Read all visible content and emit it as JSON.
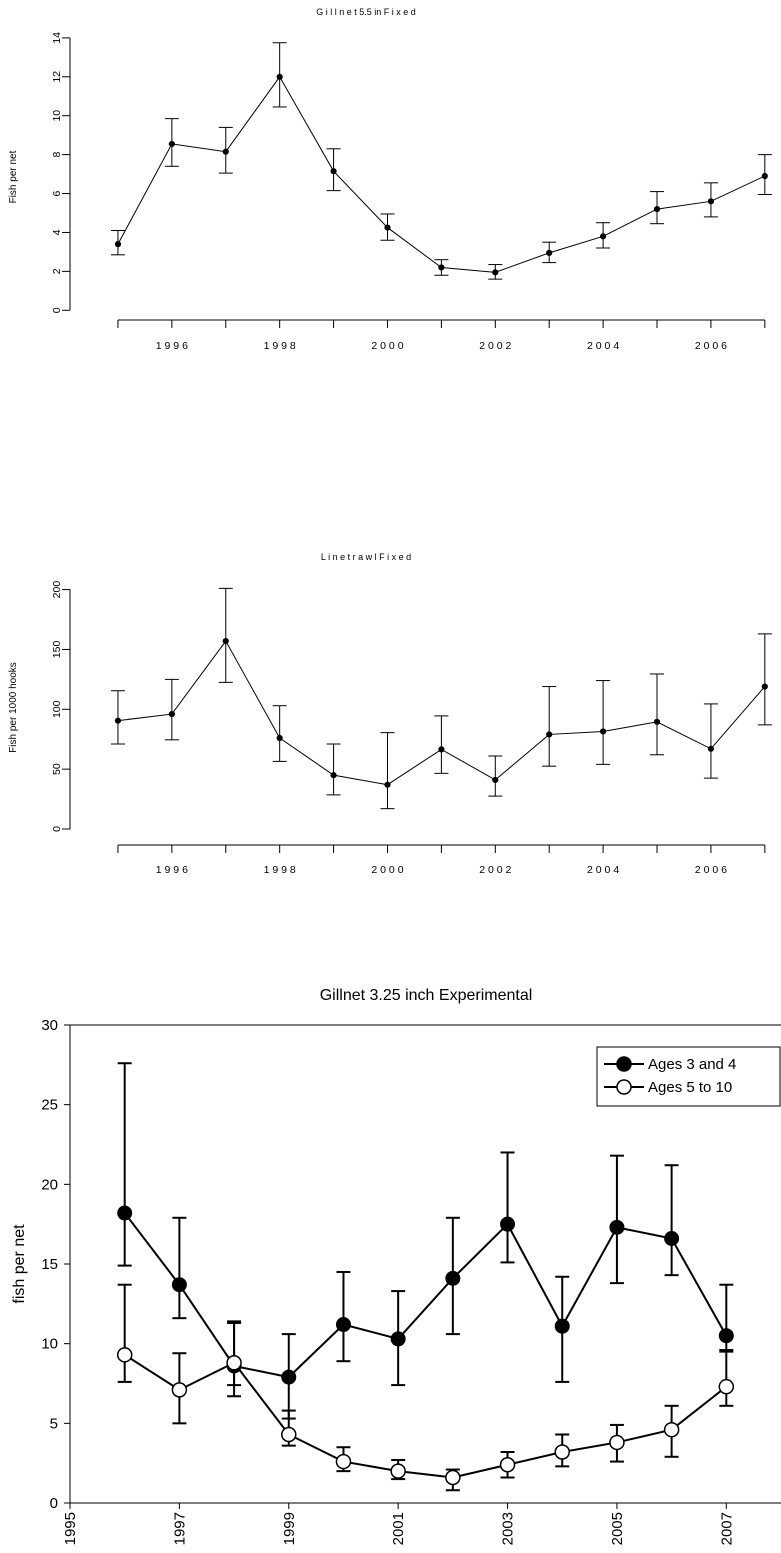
{
  "chart_data": [
    {
      "type": "line",
      "title": "G i l l n e t  5.5  in   F i x e d",
      "xlabel": "",
      "ylabel": "Fish per net",
      "xlim": [
        1994.5,
        2007.3
      ],
      "ylim": [
        -0.5,
        14.2
      ],
      "xticks": [
        1996,
        1998,
        2000,
        2002,
        2004,
        2006
      ],
      "xtick_labels": [
        "1 9 9 6",
        "1 9 9 8",
        "2 0 0 0",
        "2 0 0 2",
        "2 0 0 4",
        "2 0 0 6"
      ],
      "yticks": [
        0,
        2,
        4,
        6,
        8,
        10,
        12,
        14
      ],
      "ytick_labels": [
        "0",
        "2",
        "4",
        "6",
        "8",
        "10",
        "12",
        "14"
      ],
      "series": [
        {
          "marker": "small-filled",
          "x": [
            1995,
            1996,
            1997,
            1998,
            1999,
            2000,
            2001,
            2002,
            2003,
            2004,
            2005,
            2006,
            2007
          ],
          "y": [
            3.4,
            8.55,
            8.15,
            12.0,
            7.15,
            4.25,
            2.2,
            1.95,
            2.95,
            3.8,
            5.2,
            5.6,
            6.9
          ],
          "lower": [
            2.85,
            7.4,
            7.05,
            10.45,
            6.15,
            3.6,
            1.8,
            1.6,
            2.45,
            3.2,
            4.45,
            4.8,
            5.95
          ],
          "upper": [
            4.1,
            9.85,
            9.4,
            13.75,
            8.3,
            4.95,
            2.6,
            2.35,
            3.5,
            4.5,
            6.1,
            6.55,
            8.0
          ]
        }
      ]
    },
    {
      "type": "line",
      "title": "L i n e t r a w l   F i x e d",
      "xlabel": "",
      "ylabel": "Fish per 1000 hooks",
      "xlim": [
        1994.5,
        2007.3
      ],
      "ylim": [
        -5,
        208
      ],
      "xticks": [
        1996,
        1998,
        2000,
        2002,
        2004,
        2006
      ],
      "xtick_labels": [
        "1 9 9 6",
        "1 9 9 8",
        "2 0 0 0",
        "2 0 0 2",
        "2 0 0 4",
        "2 0 0 6"
      ],
      "yticks": [
        0,
        50,
        100,
        150,
        200
      ],
      "ytick_labels": [
        "0",
        "50",
        "100",
        "150",
        "200"
      ],
      "series": [
        {
          "marker": "small-filled",
          "x": [
            1995,
            1996,
            1997,
            1998,
            1999,
            2000,
            2001,
            2002,
            2003,
            2004,
            2005,
            2006,
            2007
          ],
          "y": [
            90.5,
            96,
            157,
            76,
            45,
            37,
            66.5,
            41,
            79,
            81.5,
            89.5,
            67,
            119
          ],
          "lower": [
            71,
            74.5,
            122.5,
            56.5,
            28.5,
            17,
            46.5,
            27.5,
            52.5,
            54,
            62,
            42.5,
            87
          ],
          "upper": [
            115.5,
            125,
            201,
            103,
            71,
            80.5,
            94.5,
            61,
            119,
            124,
            129.5,
            104.5,
            163
          ]
        }
      ]
    },
    {
      "type": "line",
      "title": "Gillnet 3.25 inch Experimental",
      "xlabel": "",
      "ylabel": "fish per net",
      "xlim": [
        1995,
        2008
      ],
      "ylim": [
        0,
        30
      ],
      "xticks": [
        1995,
        1997,
        1999,
        2001,
        2003,
        2005,
        2007
      ],
      "xtick_labels": [
        "1995",
        "1997",
        "1999",
        "2001",
        "2003",
        "2005",
        "2007"
      ],
      "yticks": [
        0,
        5,
        10,
        15,
        20,
        25,
        30
      ],
      "ytick_labels": [
        "0",
        "5",
        "10",
        "15",
        "20",
        "25",
        "30"
      ],
      "legend": "top-right",
      "series": [
        {
          "name": "Ages 3 and 4",
          "marker": "filled-circle",
          "x": [
            1996,
            1997,
            1998,
            1999,
            2000,
            2001,
            2002,
            2003,
            2004,
            2005,
            2006,
            2007
          ],
          "y": [
            18.2,
            13.7,
            8.6,
            7.9,
            11.2,
            10.3,
            14.1,
            17.5,
            11.1,
            17.3,
            16.6,
            10.5
          ],
          "lower": [
            14.9,
            11.6,
            6.7,
            5.3,
            8.9,
            7.4,
            10.6,
            15.1,
            7.6,
            13.8,
            14.3,
            9.5
          ],
          "upper": [
            27.6,
            17.9,
            11.4,
            10.6,
            14.5,
            13.3,
            17.9,
            22.0,
            14.2,
            21.8,
            21.2,
            13.7
          ]
        },
        {
          "name": "Ages 5 to 10",
          "marker": "open-circle",
          "x": [
            1996,
            1997,
            1998,
            1999,
            2000,
            2001,
            2002,
            2003,
            2004,
            2005,
            2006,
            2007
          ],
          "y": [
            9.3,
            7.1,
            8.8,
            4.3,
            2.6,
            2.0,
            1.6,
            2.4,
            3.2,
            3.8,
            4.6,
            7.3
          ],
          "lower": [
            7.6,
            5.0,
            7.4,
            3.6,
            2.0,
            1.5,
            0.8,
            1.6,
            2.3,
            2.6,
            2.9,
            6.1
          ],
          "upper": [
            13.7,
            9.4,
            11.3,
            5.8,
            3.5,
            2.7,
            2.1,
            3.2,
            4.3,
            4.9,
            6.1,
            9.6
          ]
        }
      ]
    }
  ]
}
